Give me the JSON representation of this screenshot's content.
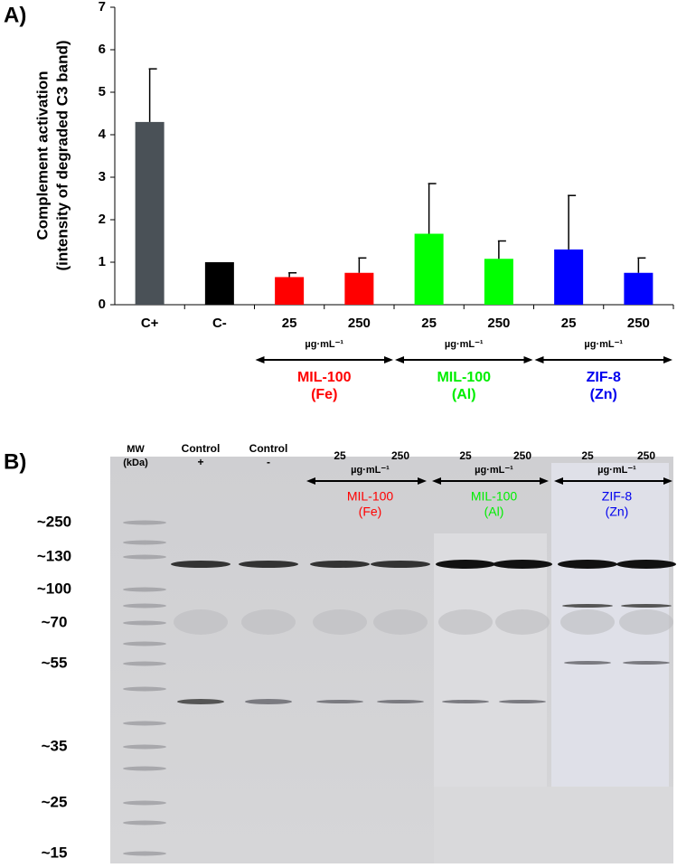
{
  "chart_data": {
    "type": "bar",
    "panel_label": "A)",
    "y_label": [
      "Complement activation",
      "(intensity of degraded C3 band)"
    ],
    "categories": [
      "C+",
      "C-",
      "25",
      "250",
      "25",
      "250",
      "25",
      "250"
    ],
    "values": [
      4.3,
      1.0,
      0.65,
      0.75,
      1.67,
      1.08,
      1.3,
      0.75
    ],
    "errors": [
      1.25,
      0,
      0.1,
      0.35,
      1.18,
      0.42,
      1.27,
      0.35
    ],
    "colors": [
      "#4a5157",
      "#000000",
      "#ff0000",
      "#ff0000",
      "#00ff00",
      "#00ff00",
      "#0000ff",
      "#0000ff"
    ],
    "groups": [
      {
        "unit": "µg·mL⁻¹",
        "name": "MIL-100",
        "sub": "(Fe)",
        "color": "#ff0000"
      },
      {
        "unit": "µg·mL⁻¹",
        "name": "MIL-100",
        "sub": "(Al)",
        "color": "#00ee00"
      },
      {
        "unit": "µg·mL⁻¹",
        "name": "ZIF-8",
        "sub": "(Zn)",
        "color": "#0000ee"
      }
    ],
    "ylim": [
      0,
      7
    ],
    "yticks": [
      0,
      1,
      2,
      3,
      4,
      5,
      6,
      7
    ]
  },
  "gel": {
    "panel_label": "B)",
    "mw_header": [
      "MW",
      "(kDa)"
    ],
    "lanes": [
      [
        "Control",
        "+"
      ],
      [
        "Control",
        "-"
      ]
    ],
    "groups": [
      {
        "doses": [
          "25",
          "250"
        ],
        "unit": "µg·mL⁻¹",
        "name": "MIL-100",
        "sub": "(Fe)",
        "color": "#ff0000"
      },
      {
        "doses": [
          "25",
          "250"
        ],
        "unit": "µg·mL⁻¹",
        "name": "MIL-100",
        "sub": "(Al)",
        "color": "#00ee00"
      },
      {
        "doses": [
          "25",
          "250"
        ],
        "unit": "µg·mL⁻¹",
        "name": "ZIF-8",
        "sub": "(Zn)",
        "color": "#0000ee"
      }
    ],
    "markers": [
      "~250",
      "~130",
      "~100",
      "~70",
      "~55",
      "~35",
      "~25",
      "~15"
    ]
  }
}
